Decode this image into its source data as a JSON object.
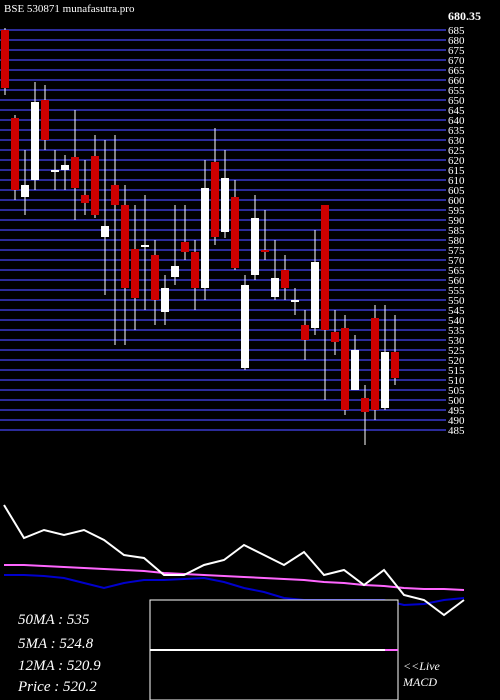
{
  "chart_data": [
    {
      "type": "candlestick",
      "title": "BSE 530871 munafasutra.pro",
      "high_label": "680.35",
      "up_color": "#ffffff",
      "down_color": "#cc0000",
      "grid_color": "#2b2b9a",
      "ylim": [
        477.5,
        691
      ],
      "grid": true,
      "yticks": [
        485,
        490,
        495,
        500,
        505,
        510,
        515,
        520,
        525,
        530,
        535,
        540,
        545,
        550,
        555,
        560,
        565,
        570,
        575,
        580,
        585,
        590,
        595,
        600,
        605,
        610,
        615,
        620,
        625,
        630,
        635,
        640,
        645,
        650,
        655,
        660,
        665,
        670,
        675,
        680,
        685
      ],
      "open": [
        685,
        641,
        601.5,
        610,
        650,
        614,
        615,
        621.5,
        602.5,
        622,
        581.5,
        607.5,
        597.5,
        575.5,
        576.5,
        572.5,
        544,
        561.5,
        579,
        574,
        556,
        619,
        584,
        601.5,
        516,
        562.5,
        575,
        551.5,
        565,
        549,
        537.5,
        536,
        597.5,
        534,
        536,
        505,
        501,
        541,
        496,
        524
      ],
      "high": [
        686,
        642.5,
        625,
        659,
        657.5,
        625,
        622.5,
        645,
        620,
        632.5,
        630,
        632.5,
        607.5,
        597.5,
        602.5,
        580,
        562.5,
        597.5,
        597.5,
        580,
        620,
        636,
        625,
        610,
        562.5,
        602.5,
        595,
        580,
        572.5,
        556,
        545,
        585,
        597.5,
        545,
        542.5,
        532.5,
        507.5,
        547.5,
        547.5,
        542.5
      ],
      "low": [
        652.5,
        600,
        592.5,
        605,
        625,
        605,
        605,
        590,
        592.5,
        591,
        552.5,
        527.5,
        527.5,
        535,
        545,
        537.5,
        537.5,
        557.5,
        570,
        545,
        550,
        577.5,
        581,
        565,
        515,
        560,
        570,
        550,
        550,
        542.5,
        520,
        532.5,
        500,
        522.5,
        492.5,
        505,
        477.5,
        490,
        495,
        507.5
      ],
      "close": [
        656,
        605,
        607.5,
        649,
        630,
        615,
        617.5,
        606,
        598.5,
        592.5,
        587,
        597.5,
        556,
        551,
        577.5,
        550,
        556,
        567,
        574,
        556,
        606,
        581.5,
        611,
        566,
        557.5,
        591,
        574,
        561,
        556,
        550,
        530,
        569,
        535,
        529,
        495,
        525,
        494,
        495,
        524,
        511
      ]
    },
    {
      "type": "line",
      "ylim": [
        0,
        100
      ],
      "x": [
        0,
        20,
        40,
        60,
        80,
        100,
        120,
        140,
        160,
        180,
        200,
        220,
        240,
        260,
        280,
        300,
        320,
        340,
        360,
        380,
        400,
        420,
        440,
        460
      ],
      "series": [
        {
          "color": "#ff66ff",
          "values": [
            67.5,
            67.5,
            67,
            66.5,
            66,
            65.5,
            65,
            64.5,
            63.5,
            63,
            62.5,
            62,
            61.5,
            61,
            60.5,
            60,
            59,
            58.5,
            57.5,
            57,
            56,
            55.5,
            55.5,
            55
          ]
        },
        {
          "color": "#0000cc",
          "values": [
            62.5,
            62.5,
            62,
            61,
            58.5,
            56,
            58.5,
            60,
            60,
            60.5,
            61,
            59,
            56,
            54,
            51,
            50,
            50,
            50,
            50,
            50,
            47.5,
            48,
            50,
            51
          ]
        },
        {
          "color": "#ffffff",
          "values": [
            97.5,
            81,
            85,
            82.5,
            85,
            80,
            72.5,
            71,
            62.5,
            62.5,
            67.5,
            70,
            77.5,
            72.5,
            67.5,
            74,
            62.5,
            65,
            57.5,
            65,
            52.5,
            50,
            42.5,
            50
          ]
        }
      ],
      "info": [
        "50MA : 535",
        "5MA : 524.8",
        "12MA : 520.9",
        "Price   : 520.2"
      ],
      "live": "<<Live",
      "macd": "MACD"
    }
  ]
}
